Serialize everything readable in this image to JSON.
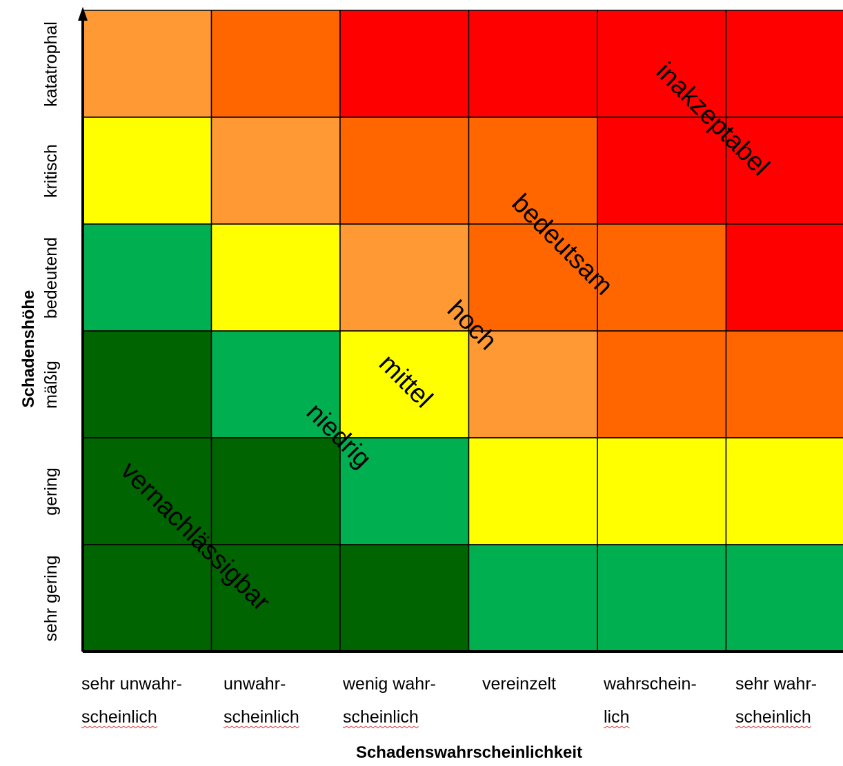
{
  "chart_data": {
    "type": "heatmap",
    "xlabel": "Schadenswahrscheinlichkeit",
    "ylabel": "Schadenshöhe",
    "x_categories": [
      {
        "line1": "sehr unwahr-",
        "line2": "scheinlich"
      },
      {
        "line1": "unwahr-",
        "line2": "scheinlich"
      },
      {
        "line1": "wenig wahr-",
        "line2": "scheinlich"
      },
      {
        "line1": "vereinzelt",
        "line2": ""
      },
      {
        "line1": "wahrschein-",
        "line2": "lich"
      },
      {
        "line1": "sehr wahr-",
        "line2": "scheinlich"
      }
    ],
    "y_categories_top_to_bottom": [
      "katatrophal",
      "kritisch",
      "bedeutend",
      "mäßig",
      "gering",
      "sehr gering"
    ],
    "levels": [
      "vernachlässigbar",
      "niedrig",
      "mittel",
      "hoch",
      "bedeutsam",
      "inakzeptabel"
    ],
    "level_colors": {
      "vernachlässigbar": "#006400",
      "niedrig": "#00b050",
      "mittel": "#ffff00",
      "hoch": "#ff9933",
      "bedeutsam": "#ff6600",
      "inakzeptabel": "#ff0000"
    },
    "grid_levels_top_to_bottom": [
      [
        "hoch",
        "bedeutsam",
        "inakzeptabel",
        "inakzeptabel",
        "inakzeptabel",
        "inakzeptabel"
      ],
      [
        "mittel",
        "hoch",
        "bedeutsam",
        "bedeutsam",
        "inakzeptabel",
        "inakzeptabel"
      ],
      [
        "niedrig",
        "mittel",
        "hoch",
        "bedeutsam",
        "bedeutsam",
        "inakzeptabel"
      ],
      [
        "vernachlässigbar",
        "niedrig",
        "mittel",
        "hoch",
        "bedeutsam",
        "bedeutsam"
      ],
      [
        "vernachlässigbar",
        "vernachlässigbar",
        "niedrig",
        "mittel",
        "mittel",
        "mittel"
      ],
      [
        "vernachlässigbar",
        "vernachlässigbar",
        "vernachlässigbar",
        "niedrig",
        "niedrig",
        "niedrig"
      ]
    ],
    "zone_labels": [
      "vernachlässigbar",
      "niedrig",
      "mittel",
      "hoch",
      "bedeutsam",
      "inakzeptabel"
    ]
  }
}
